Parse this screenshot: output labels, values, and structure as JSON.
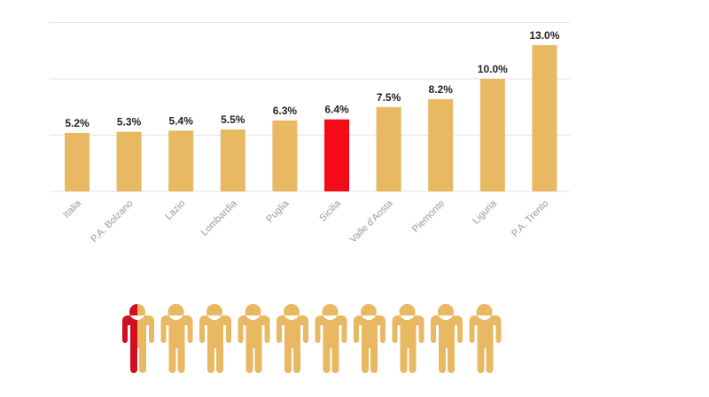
{
  "colors": {
    "bar": "#E8B862",
    "highlight": "#F50A1A",
    "grid": "#E3E3E3",
    "person": "#E8B862",
    "person_highlight": "#D01020",
    "background": "#FFFFFF"
  },
  "chart_data": {
    "type": "bar",
    "categories": [
      "Italia",
      "P.A. Bolzano",
      "Lazio",
      "Lombardia",
      "Puglia",
      "Sicilia",
      "Valle d'Aosta",
      "Piemonte",
      "Liguria",
      "P.A. Trento"
    ],
    "values": [
      5.2,
      5.3,
      5.4,
      5.5,
      6.3,
      6.4,
      7.5,
      8.2,
      10.0,
      13.0
    ],
    "value_labels": [
      "5.2%",
      "5.3%",
      "5.4%",
      "5.5%",
      "6.3%",
      "6.4%",
      "7.5%",
      "8.2%",
      "10.0%",
      "13.0%"
    ],
    "highlighted_category": "Sicilia",
    "ylim": [
      0,
      15
    ],
    "y_gridlines": [
      0,
      5,
      10,
      15
    ],
    "grid": true,
    "title": "",
    "xlabel": "",
    "ylabel": "",
    "x_tick_rotation_deg": -45
  },
  "pictogram": {
    "count": 10,
    "icon": "person-icon",
    "highlighted_fraction_of_first": 0.5
  }
}
